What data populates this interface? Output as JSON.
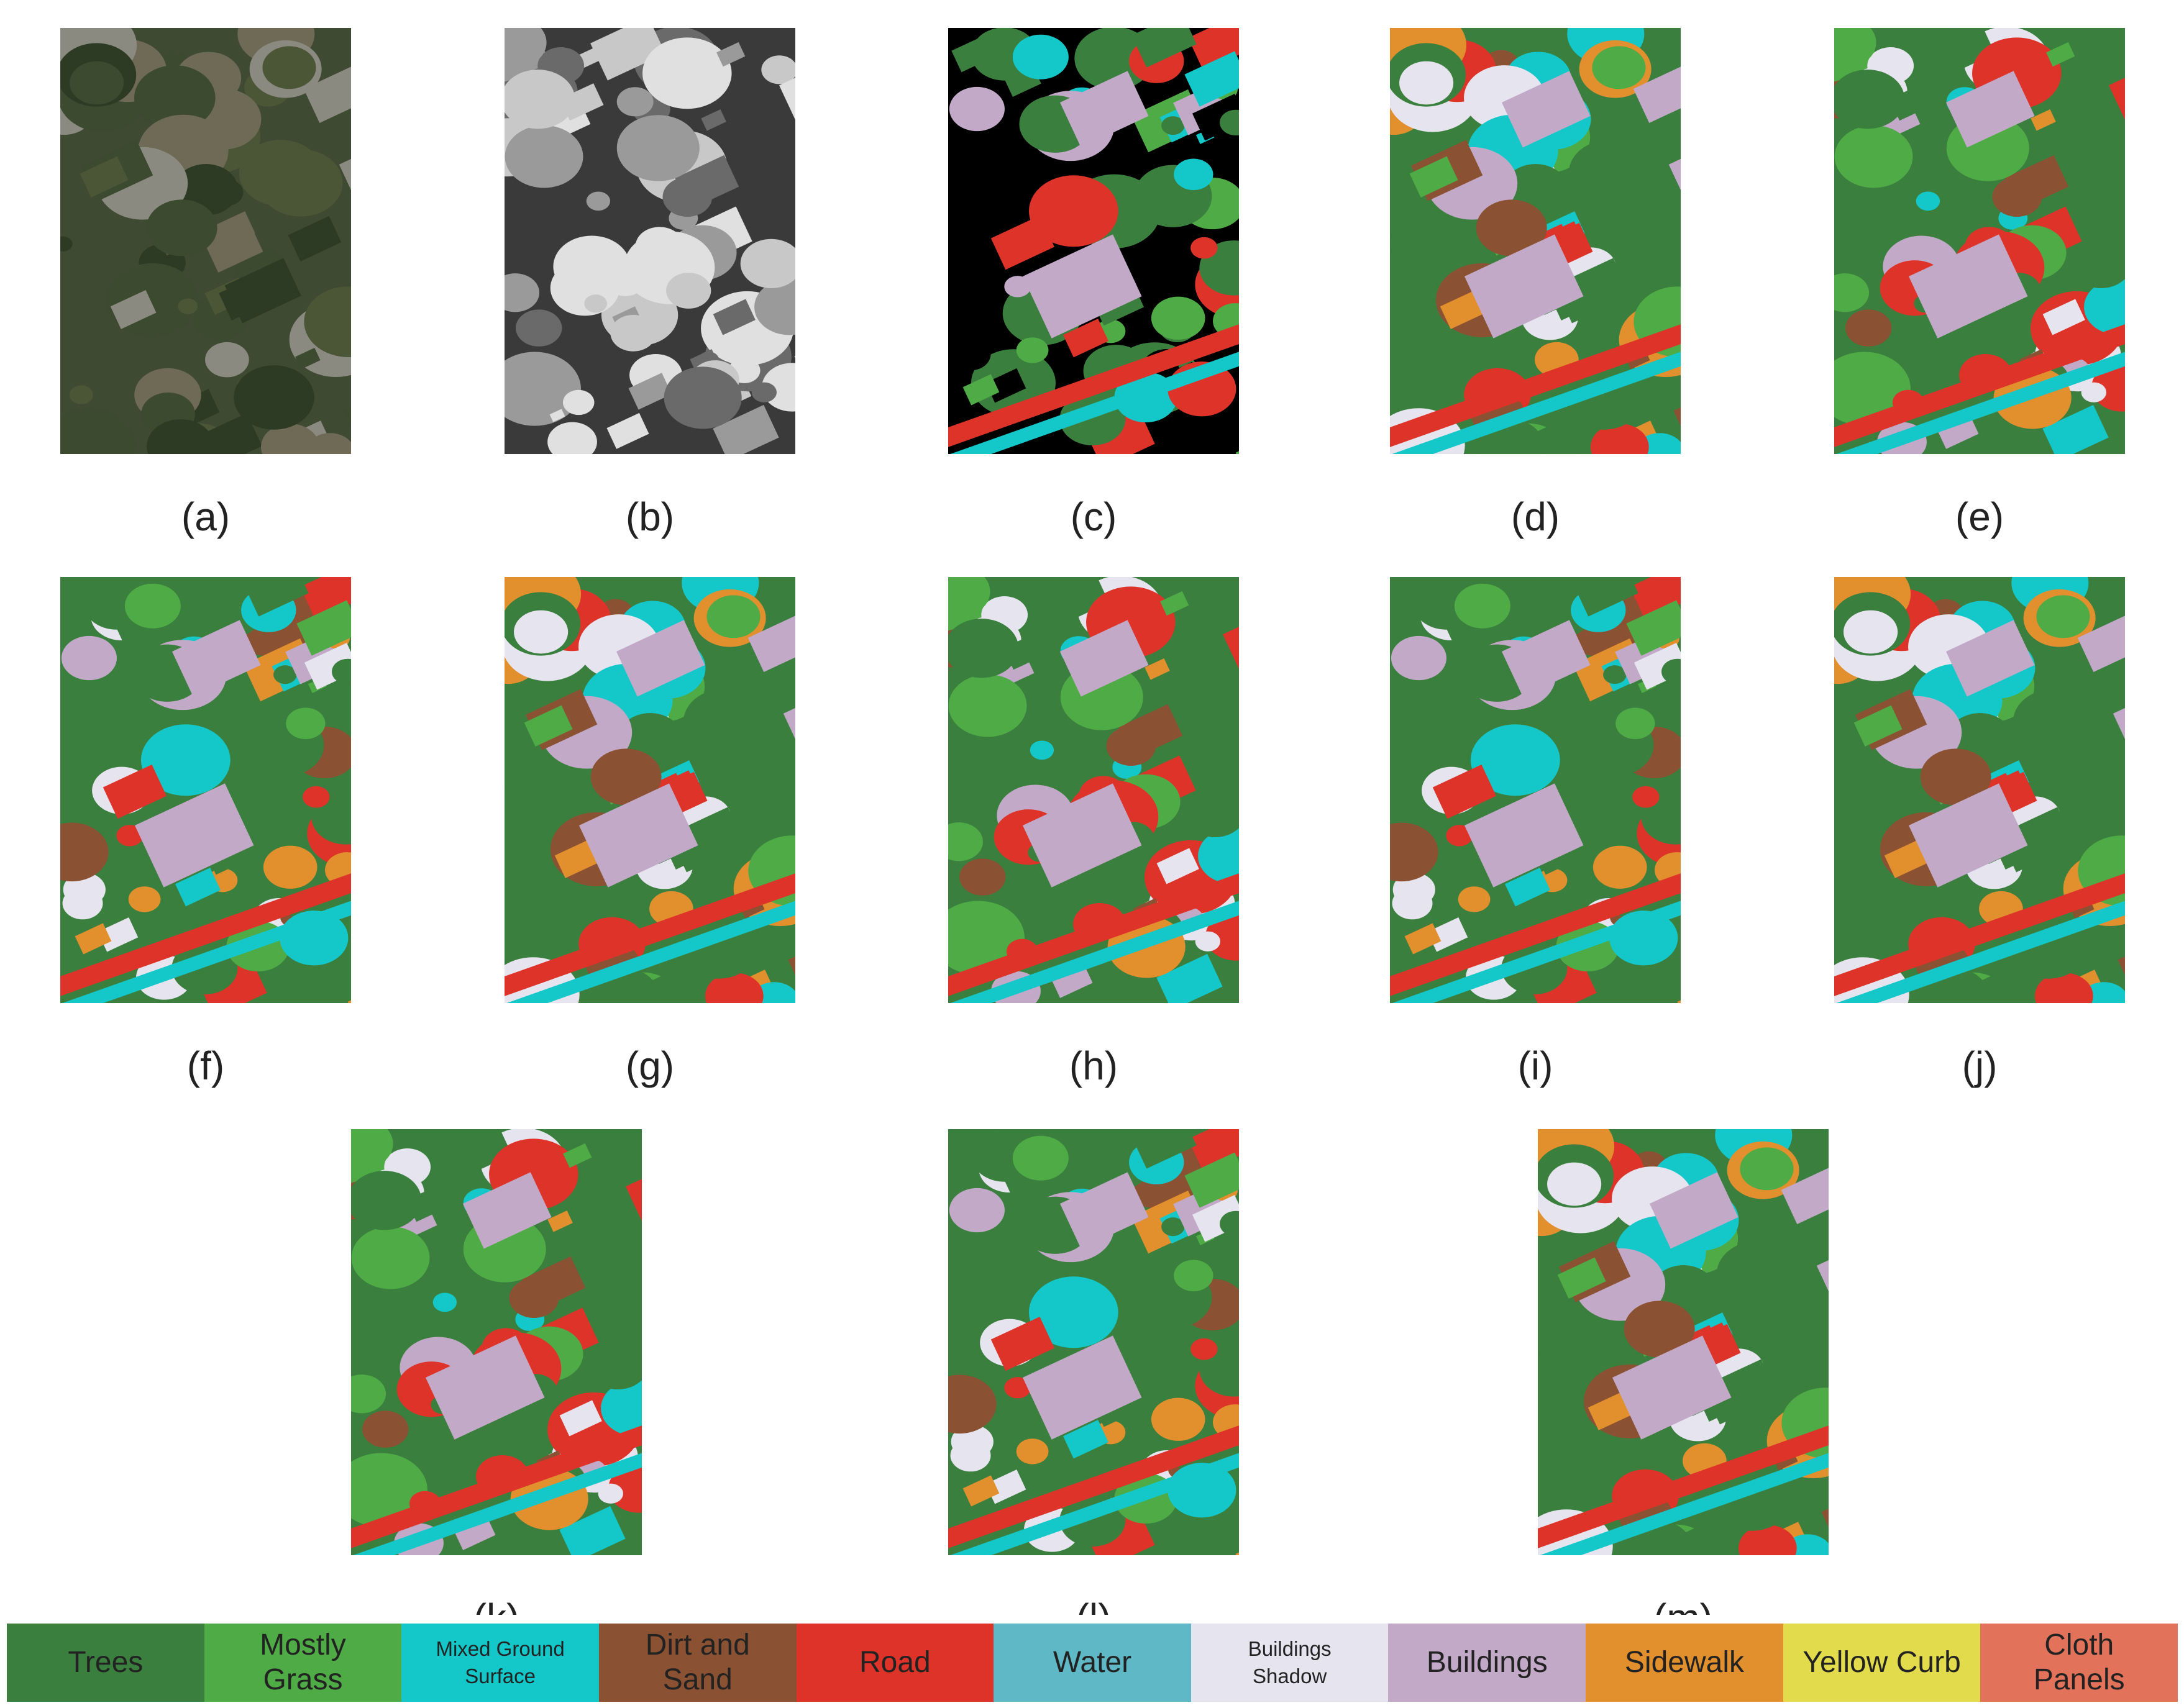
{
  "panels": [
    {
      "label": "(a)"
    },
    {
      "label": "(b)"
    },
    {
      "label": "(c)"
    },
    {
      "label": "(d)"
    },
    {
      "label": "(e)"
    },
    {
      "label": "(f)"
    },
    {
      "label": "(g)"
    },
    {
      "label": "(h)"
    },
    {
      "label": "(i)"
    },
    {
      "label": "(j)"
    },
    {
      "label": "(k)"
    },
    {
      "label": "(l)"
    },
    {
      "label": "(m)"
    }
  ],
  "legend": [
    {
      "label": "Trees",
      "color": "#3b7f3f"
    },
    {
      "label": "Mostly Grass",
      "color": "#4fab45"
    },
    {
      "label": "Mixed Ground Surface",
      "color": "#14c8c9"
    },
    {
      "label": "Dirt and Sand",
      "color": "#8a5232"
    },
    {
      "label": "Road",
      "color": "#de3328"
    },
    {
      "label": "Water",
      "color": "#5fb8c5"
    },
    {
      "label": "Buildings Shadow",
      "color": "#e6e4ef"
    },
    {
      "label": "Buildings",
      "color": "#c3a9c8"
    },
    {
      "label": "Sidewalk",
      "color": "#e28f2e"
    },
    {
      "label": "Yellow Curb",
      "color": "#e2dc4c"
    },
    {
      "label": "Cloth Panels",
      "color": "#e2735a"
    }
  ]
}
